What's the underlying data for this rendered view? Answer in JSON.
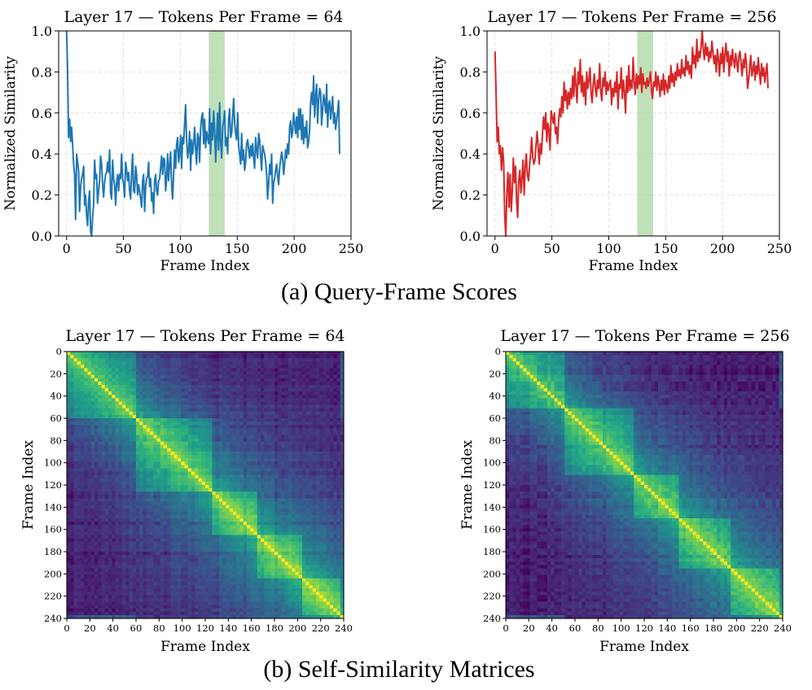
{
  "chart_data": [
    {
      "type": "line",
      "title": "Layer 17 — Tokens Per Frame = 64",
      "xlabel": "Frame Index",
      "ylabel": "Normalized Similarity",
      "xlim": [
        -7,
        250
      ],
      "ylim": [
        0.0,
        1.0
      ],
      "xticks": [
        "0",
        "50",
        "100",
        "150",
        "200",
        "250"
      ],
      "yticks": [
        "0.0",
        "0.2",
        "0.4",
        "0.6",
        "0.8",
        "1.0"
      ],
      "grid": true,
      "color": "#1f77b4",
      "highlight": {
        "x_start": 125,
        "x_end": 139,
        "color": "#a9d6a0"
      },
      "series": [
        {
          "name": "similarity",
          "values": [
            1.0,
            0.8,
            0.48,
            0.57,
            0.46,
            0.53,
            0.45,
            0.35,
            0.3,
            0.08,
            0.4,
            0.36,
            0.32,
            0.12,
            0.24,
            0.28,
            0.3,
            0.34,
            0.15,
            0.2,
            0.1,
            0.05,
            0.17,
            0.22,
            0.02,
            0.0,
            0.09,
            0.15,
            0.37,
            0.28,
            0.3,
            0.16,
            0.22,
            0.27,
            0.39,
            0.35,
            0.25,
            0.19,
            0.26,
            0.3,
            0.31,
            0.36,
            0.31,
            0.42,
            0.21,
            0.18,
            0.37,
            0.28,
            0.25,
            0.15,
            0.26,
            0.3,
            0.22,
            0.3,
            0.28,
            0.4,
            0.28,
            0.25,
            0.19,
            0.36,
            0.32,
            0.27,
            0.31,
            0.22,
            0.18,
            0.31,
            0.4,
            0.22,
            0.21,
            0.34,
            0.3,
            0.2,
            0.25,
            0.22,
            0.18,
            0.14,
            0.27,
            0.3,
            0.12,
            0.24,
            0.28,
            0.29,
            0.36,
            0.24,
            0.28,
            0.17,
            0.21,
            0.11,
            0.27,
            0.3,
            0.22,
            0.2,
            0.27,
            0.28,
            0.33,
            0.39,
            0.3,
            0.38,
            0.37,
            0.22,
            0.28,
            0.4,
            0.27,
            0.35,
            0.41,
            0.25,
            0.18,
            0.3,
            0.42,
            0.33,
            0.45,
            0.48,
            0.36,
            0.4,
            0.49,
            0.33,
            0.48,
            0.45,
            0.55,
            0.64,
            0.47,
            0.38,
            0.42,
            0.51,
            0.32,
            0.47,
            0.4,
            0.45,
            0.53,
            0.42,
            0.35,
            0.5,
            0.48,
            0.36,
            0.52,
            0.58,
            0.6,
            0.45,
            0.57,
            0.43,
            0.51,
            0.48,
            0.45,
            0.62,
            0.4,
            0.55,
            0.47,
            0.61,
            0.52,
            0.36,
            0.48,
            0.6,
            0.42,
            0.65,
            0.46,
            0.38,
            0.53,
            0.56,
            0.61,
            0.44,
            0.48,
            0.4,
            0.57,
            0.62,
            0.48,
            0.5,
            0.58,
            0.67,
            0.55,
            0.5,
            0.47,
            0.6,
            0.44,
            0.4,
            0.35,
            0.5,
            0.37,
            0.42,
            0.32,
            0.36,
            0.45,
            0.47,
            0.42,
            0.38,
            0.44,
            0.39,
            0.45,
            0.38,
            0.33,
            0.48,
            0.42,
            0.38,
            0.5,
            0.47,
            0.39,
            0.32,
            0.44,
            0.42,
            0.4,
            0.36,
            0.3,
            0.18,
            0.25,
            0.35,
            0.3,
            0.4,
            0.16,
            0.26,
            0.28,
            0.32,
            0.35,
            0.29,
            0.25,
            0.33,
            0.37,
            0.41,
            0.38,
            0.3,
            0.35,
            0.42,
            0.38,
            0.45,
            0.4,
            0.53,
            0.56,
            0.48,
            0.51,
            0.6,
            0.55,
            0.5,
            0.58,
            0.48,
            0.62,
            0.52,
            0.62,
            0.47,
            0.59,
            0.45,
            0.53,
            0.48,
            0.56,
            0.43,
            0.46,
            0.52,
            0.65,
            0.7,
            0.64,
            0.78,
            0.58,
            0.68,
            0.74,
            0.55,
            0.66,
            0.72,
            0.7,
            0.54,
            0.62,
            0.69,
            0.66,
            0.6,
            0.74,
            0.53,
            0.64,
            0.66,
            0.57,
            0.62,
            0.68,
            0.55,
            0.6,
            0.52,
            0.56,
            0.61,
            0.66,
            0.4
          ]
        }
      ]
    },
    {
      "type": "line",
      "title": "Layer 17 — Tokens Per Frame = 256",
      "xlabel": "Frame Index",
      "ylabel": "Normalized Similarity",
      "xlim": [
        -7,
        250
      ],
      "ylim": [
        0.0,
        1.0
      ],
      "xticks": [
        "0",
        "50",
        "100",
        "150",
        "200",
        "250"
      ],
      "yticks": [
        "0.0",
        "0.2",
        "0.4",
        "0.6",
        "0.8",
        "1.0"
      ],
      "grid": true,
      "color": "#d62728",
      "highlight": {
        "x_start": 125,
        "x_end": 139,
        "color": "#a9d6a0"
      },
      "series": [
        {
          "name": "similarity",
          "values": [
            0.9,
            0.7,
            0.46,
            0.53,
            0.4,
            0.44,
            0.32,
            0.43,
            0.36,
            0.1,
            0.0,
            0.22,
            0.31,
            0.14,
            0.3,
            0.12,
            0.22,
            0.38,
            0.26,
            0.34,
            0.17,
            0.09,
            0.27,
            0.32,
            0.21,
            0.28,
            0.37,
            0.2,
            0.34,
            0.4,
            0.3,
            0.27,
            0.34,
            0.4,
            0.48,
            0.38,
            0.35,
            0.37,
            0.44,
            0.51,
            0.43,
            0.35,
            0.45,
            0.4,
            0.5,
            0.58,
            0.52,
            0.6,
            0.46,
            0.55,
            0.52,
            0.42,
            0.61,
            0.58,
            0.55,
            0.6,
            0.5,
            0.53,
            0.45,
            0.57,
            0.62,
            0.58,
            0.68,
            0.6,
            0.75,
            0.66,
            0.71,
            0.62,
            0.7,
            0.64,
            0.72,
            0.67,
            0.78,
            0.68,
            0.82,
            0.73,
            0.65,
            0.8,
            0.74,
            0.86,
            0.7,
            0.78,
            0.68,
            0.75,
            0.64,
            0.8,
            0.72,
            0.76,
            0.82,
            0.7,
            0.65,
            0.74,
            0.79,
            0.72,
            0.68,
            0.76,
            0.72,
            0.84,
            0.7,
            0.66,
            0.77,
            0.73,
            0.8,
            0.69,
            0.75,
            0.71,
            0.74,
            0.76,
            0.64,
            0.72,
            0.68,
            0.75,
            0.7,
            0.8,
            0.62,
            0.74,
            0.72,
            0.82,
            0.67,
            0.76,
            0.7,
            0.6,
            0.78,
            0.7,
            0.83,
            0.71,
            0.76,
            0.72,
            0.87,
            0.75,
            0.69,
            0.79,
            0.72,
            0.78,
            0.74,
            0.82,
            0.7,
            0.79,
            0.74,
            0.75,
            0.72,
            0.77,
            0.73,
            0.76,
            0.8,
            0.71,
            0.67,
            0.75,
            0.73,
            0.8,
            0.71,
            0.78,
            0.74,
            0.68,
            0.76,
            0.71,
            0.79,
            0.69,
            0.76,
            0.73,
            0.7,
            0.78,
            0.72,
            0.83,
            0.75,
            0.79,
            0.73,
            0.8,
            0.76,
            0.84,
            0.78,
            0.81,
            0.77,
            0.86,
            0.79,
            0.82,
            0.78,
            0.88,
            0.81,
            0.85,
            0.79,
            0.83,
            0.77,
            0.92,
            0.84,
            0.88,
            0.82,
            0.96,
            0.85,
            0.9,
            0.87,
            0.93,
            1.0,
            0.91,
            0.86,
            0.94,
            0.88,
            0.92,
            0.85,
            0.9,
            0.87,
            0.95,
            0.89,
            0.84,
            0.88,
            0.8,
            0.91,
            0.86,
            0.78,
            0.89,
            0.84,
            0.92,
            0.8,
            0.88,
            0.94,
            0.85,
            0.9,
            0.78,
            0.88,
            0.83,
            0.91,
            0.86,
            0.82,
            0.89,
            0.85,
            0.8,
            0.88,
            0.9,
            0.84,
            0.78,
            0.86,
            0.82,
            0.89,
            0.84,
            0.72,
            0.76,
            0.82,
            0.88,
            0.78,
            0.81,
            0.85,
            0.76,
            0.83,
            0.79,
            0.87,
            0.8,
            0.74,
            0.84,
            0.78,
            0.82,
            0.75,
            0.8,
            0.84,
            0.72
          ]
        }
      ]
    },
    {
      "type": "heatmap",
      "title": "Layer 17 — Tokens Per Frame = 64",
      "xlabel": "Frame Index",
      "ylabel": "Frame Index",
      "size": 241,
      "colormap": "viridis",
      "xticks": [
        "0",
        "20",
        "40",
        "60",
        "80",
        "100",
        "120",
        "140",
        "160",
        "180",
        "200",
        "220",
        "240"
      ],
      "yticks": [
        "0",
        "20",
        "40",
        "60",
        "80",
        "100",
        "120",
        "140",
        "160",
        "180",
        "200",
        "220",
        "240"
      ],
      "blocks": [
        [
          0,
          60
        ],
        [
          60,
          125
        ],
        [
          125,
          165
        ],
        [
          165,
          205
        ],
        [
          205,
          240
        ]
      ],
      "seed": 11
    },
    {
      "type": "heatmap",
      "title": "Layer 17 — Tokens Per Frame = 256",
      "xlabel": "Frame Index",
      "ylabel": "Frame Index",
      "size": 241,
      "colormap": "viridis",
      "xticks": [
        "0",
        "20",
        "40",
        "60",
        "80",
        "100",
        "120",
        "140",
        "160",
        "180",
        "200",
        "220",
        "240"
      ],
      "yticks": [
        "0",
        "20",
        "40",
        "60",
        "80",
        "100",
        "120",
        "140",
        "160",
        "180",
        "200",
        "220",
        "240"
      ],
      "blocks": [
        [
          0,
          50
        ],
        [
          50,
          110
        ],
        [
          110,
          150
        ],
        [
          150,
          195
        ],
        [
          195,
          240
        ]
      ],
      "seed": 29
    }
  ],
  "captions": {
    "a": "(a) Query-Frame Scores",
    "b": "(b) Self-Similarity Matrices"
  }
}
